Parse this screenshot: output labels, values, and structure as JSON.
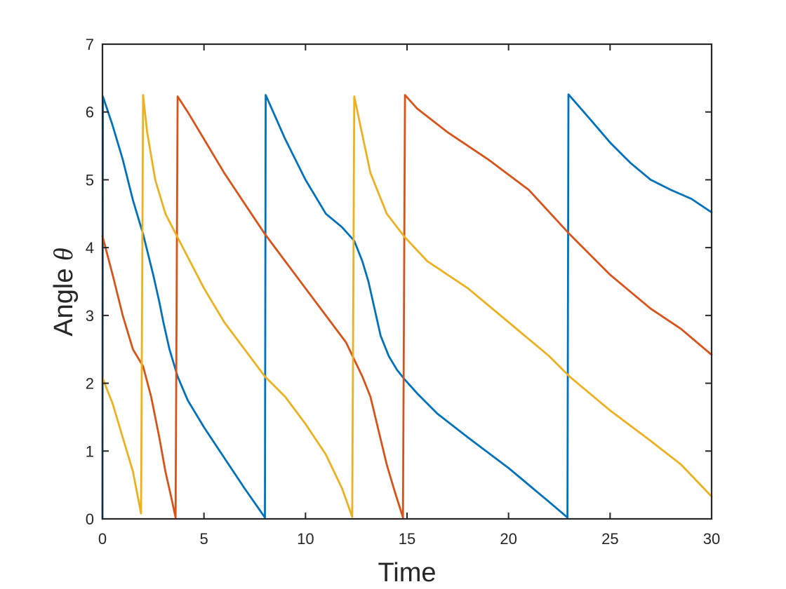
{
  "chart_data": {
    "type": "line",
    "title": "",
    "xlabel": "Time",
    "ylabel": "Angle",
    "ylabel_symbol": "θ",
    "xlim": [
      0,
      30
    ],
    "ylim": [
      0,
      7
    ],
    "xticks": [
      0,
      5,
      10,
      15,
      20,
      25,
      30
    ],
    "yticks": [
      0,
      1,
      2,
      3,
      4,
      5,
      6,
      7
    ],
    "grid": false,
    "legend": "none",
    "series": [
      {
        "color": "#0072BD",
        "points": [
          [
            0,
            0
          ],
          [
            0.02,
            6.23
          ],
          [
            0.5,
            5.8
          ],
          [
            1,
            5.3
          ],
          [
            1.5,
            4.7
          ],
          [
            2,
            4.2
          ],
          [
            2.5,
            3.6
          ],
          [
            2.8,
            3.2
          ],
          [
            3.0,
            2.9
          ],
          [
            3.3,
            2.5
          ],
          [
            3.7,
            2.1
          ],
          [
            4.2,
            1.75
          ],
          [
            5,
            1.35
          ],
          [
            6,
            0.9
          ],
          [
            7,
            0.45
          ],
          [
            8,
            0.02
          ],
          [
            8.04,
            6.25
          ],
          [
            9,
            5.6
          ],
          [
            10,
            5.0
          ],
          [
            11,
            4.5
          ],
          [
            11.8,
            4.3
          ],
          [
            12.4,
            4.1
          ],
          [
            12.8,
            3.8
          ],
          [
            13.1,
            3.5
          ],
          [
            13.4,
            3.1
          ],
          [
            13.7,
            2.7
          ],
          [
            14.1,
            2.4
          ],
          [
            14.5,
            2.2
          ],
          [
            14.9,
            2.05
          ],
          [
            15.5,
            1.85
          ],
          [
            16.5,
            1.55
          ],
          [
            18,
            1.2
          ],
          [
            20,
            0.75
          ],
          [
            22,
            0.25
          ],
          [
            22.9,
            0.02
          ],
          [
            22.95,
            6.26
          ],
          [
            24,
            5.9
          ],
          [
            25,
            5.55
          ],
          [
            26,
            5.25
          ],
          [
            27,
            5.0
          ],
          [
            28,
            4.85
          ],
          [
            29,
            4.72
          ],
          [
            30,
            4.52
          ]
        ]
      },
      {
        "color": "#D95319",
        "points": [
          [
            0,
            4.17
          ],
          [
            0.5,
            3.6
          ],
          [
            1,
            3.0
          ],
          [
            1.5,
            2.5
          ],
          [
            2,
            2.25
          ],
          [
            2.4,
            1.8
          ],
          [
            2.8,
            1.2
          ],
          [
            3.1,
            0.7
          ],
          [
            3.4,
            0.3
          ],
          [
            3.6,
            0.02
          ],
          [
            3.7,
            6.23
          ],
          [
            4.2,
            6.0
          ],
          [
            5,
            5.6
          ],
          [
            6,
            5.1
          ],
          [
            7,
            4.65
          ],
          [
            8,
            4.2
          ],
          [
            9,
            3.8
          ],
          [
            10,
            3.4
          ],
          [
            11,
            3.0
          ],
          [
            12,
            2.6
          ],
          [
            12.8,
            2.1
          ],
          [
            13.2,
            1.8
          ],
          [
            13.6,
            1.3
          ],
          [
            14,
            0.8
          ],
          [
            14.4,
            0.4
          ],
          [
            14.8,
            0.02
          ],
          [
            14.9,
            6.25
          ],
          [
            15.5,
            6.05
          ],
          [
            17,
            5.7
          ],
          [
            19,
            5.3
          ],
          [
            21,
            4.85
          ],
          [
            23,
            4.2
          ],
          [
            25,
            3.6
          ],
          [
            27,
            3.1
          ],
          [
            28.5,
            2.8
          ],
          [
            30,
            2.42
          ]
        ]
      },
      {
        "color": "#EDB120",
        "points": [
          [
            0,
            2.08
          ],
          [
            0.5,
            1.7
          ],
          [
            1,
            1.2
          ],
          [
            1.5,
            0.7
          ],
          [
            1.9,
            0.08
          ],
          [
            2.0,
            6.25
          ],
          [
            2.2,
            5.7
          ],
          [
            2.6,
            5.0
          ],
          [
            3.1,
            4.5
          ],
          [
            3.7,
            4.15
          ],
          [
            5,
            3.4
          ],
          [
            6,
            2.9
          ],
          [
            7,
            2.5
          ],
          [
            8,
            2.1
          ],
          [
            9,
            1.8
          ],
          [
            10,
            1.4
          ],
          [
            11,
            0.95
          ],
          [
            11.8,
            0.45
          ],
          [
            12.3,
            0.03
          ],
          [
            12.4,
            6.23
          ],
          [
            12.7,
            5.8
          ],
          [
            13.2,
            5.1
          ],
          [
            14,
            4.5
          ],
          [
            14.9,
            4.15
          ],
          [
            16,
            3.8
          ],
          [
            18,
            3.4
          ],
          [
            20,
            2.9
          ],
          [
            22,
            2.4
          ],
          [
            23,
            2.1
          ],
          [
            25,
            1.6
          ],
          [
            27,
            1.15
          ],
          [
            28.5,
            0.8
          ],
          [
            30,
            0.33
          ]
        ]
      }
    ]
  }
}
